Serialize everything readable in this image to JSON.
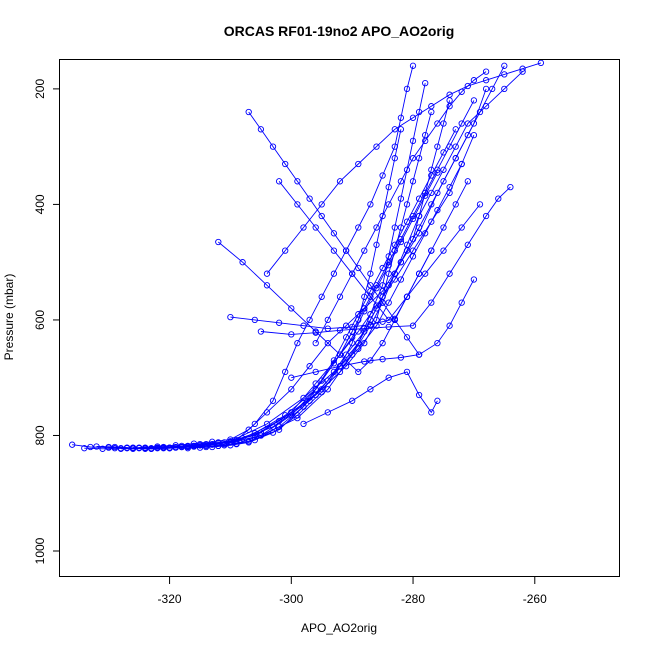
{
  "chart_data": {
    "type": "line",
    "title": "ORCAS RF01-19no2 APO_AO2orig",
    "xlabel": "APO_AO2orig",
    "ylabel": "Pressure (mbar)",
    "xlim": [
      -338,
      -246
    ],
    "ylim": [
      1045,
      150
    ],
    "y_reversed": true,
    "x_ticks": [
      -320,
      -300,
      -280,
      -260
    ],
    "x_tick_labels": [
      "-320",
      "-300",
      "-280",
      "-260"
    ],
    "y_ticks": [
      200,
      400,
      600,
      800,
      1000
    ],
    "y_tick_labels": [
      "200",
      "400",
      "600",
      "800",
      "1000"
    ],
    "grid": false,
    "legend": "none",
    "series_color": "#0000ff",
    "marker": "open-circle",
    "series": [
      {
        "x": [
          -336,
          -333,
          -330,
          -327,
          -324,
          -321,
          -318,
          -315,
          -312,
          -309,
          -306,
          -303,
          -301,
          -299,
          -297,
          -295,
          -293,
          -291,
          -289,
          -287,
          -285,
          -283,
          -282,
          -281,
          -280
        ],
        "y": [
          816,
          820,
          821,
          822,
          821,
          820,
          818,
          815,
          812,
          808,
          780,
          740,
          690,
          640,
          600,
          560,
          520,
          480,
          440,
          400,
          350,
          300,
          250,
          200,
          160
        ]
      },
      {
        "x": [
          -334,
          -331,
          -328,
          -325,
          -322,
          -319,
          -316,
          -313,
          -310,
          -307,
          -304,
          -300,
          -297,
          -294,
          -291,
          -288,
          -285,
          -282,
          -279,
          -276,
          -273,
          -270,
          -268
        ],
        "y": [
          822,
          823,
          822,
          821,
          819,
          817,
          814,
          811,
          807,
          790,
          760,
          720,
          680,
          640,
          610,
          580,
          550,
          500,
          450,
          380,
          320,
          260,
          200
        ]
      },
      {
        "x": [
          -332,
          -329,
          -326,
          -323,
          -320,
          -317,
          -314,
          -311,
          -305,
          -299,
          -294,
          -290,
          -287,
          -285,
          -283,
          -281,
          -279,
          -277,
          -275,
          -273,
          -271,
          -268,
          -265,
          -262
        ],
        "y": [
          819,
          820,
          822,
          823,
          822,
          820,
          818,
          815,
          800,
          770,
          720,
          660,
          610,
          570,
          520,
          470,
          420,
          380,
          340,
          300,
          260,
          230,
          200,
          170
        ]
      },
      {
        "x": [
          -328,
          -325,
          -322,
          -319,
          -316,
          -313,
          -309,
          -303,
          -297,
          -292,
          -289,
          -287,
          -285,
          -284,
          -283,
          -282,
          -281,
          -280,
          -279,
          -278
        ],
        "y": [
          823,
          822,
          821,
          820,
          818,
          815,
          810,
          785,
          740,
          690,
          640,
          590,
          540,
          490,
          440,
          390,
          340,
          290,
          240,
          190
        ]
      },
      {
        "x": [
          -326,
          -323,
          -320,
          -317,
          -314,
          -310,
          -305,
          -300,
          -296,
          -292,
          -289,
          -286,
          -283,
          -280,
          -277,
          -274,
          -272,
          -270
        ],
        "y": [
          821,
          823,
          822,
          819,
          816,
          812,
          795,
          760,
          710,
          660,
          620,
          575,
          530,
          480,
          430,
          380,
          330,
          280
        ]
      },
      {
        "x": [
          -324,
          -321,
          -318,
          -315,
          -312,
          -308,
          -302,
          -296,
          -292,
          -290,
          -289,
          -288,
          -287,
          -286,
          -285,
          -284,
          -283,
          -282
        ],
        "y": [
          822,
          821,
          820,
          817,
          813,
          805,
          775,
          730,
          680,
          640,
          600,
          560,
          520,
          470,
          420,
          370,
          320,
          270
        ]
      },
      {
        "x": [
          -330,
          -327,
          -324,
          -321,
          -318,
          -315,
          -311,
          -306,
          -300,
          -295,
          -291,
          -288,
          -286,
          -285,
          -284,
          -283,
          -282,
          -281,
          -280,
          -279,
          -278,
          -277
        ],
        "y": [
          820,
          821,
          823,
          822,
          820,
          817,
          812,
          800,
          760,
          720,
          680,
          640,
          600,
          560,
          520,
          480,
          440,
          400,
          360,
          320,
          280,
          240
        ]
      },
      {
        "x": [
          -322,
          -319,
          -316,
          -313,
          -310,
          -306,
          -301,
          -296,
          -293,
          -291,
          -289,
          -287,
          -285,
          -283,
          -281,
          -279,
          -277,
          -275,
          -273
        ],
        "y": [
          822,
          821,
          819,
          816,
          811,
          796,
          765,
          720,
          670,
          630,
          590,
          550,
          510,
          470,
          430,
          390,
          350,
          310,
          270
        ]
      },
      {
        "x": [
          -320,
          -317,
          -314,
          -311,
          -307,
          -302,
          -298,
          -295,
          -292,
          -290,
          -288,
          -286,
          -284,
          -282,
          -280,
          -278,
          -276,
          -274,
          -272,
          -270
        ],
        "y": [
          821,
          822,
          820,
          817,
          810,
          790,
          750,
          705,
          660,
          620,
          580,
          540,
          500,
          460,
          420,
          380,
          340,
          300,
          260,
          220
        ]
      },
      {
        "x": [
          -318,
          -315,
          -312,
          -309,
          -305,
          -300,
          -296,
          -293,
          -290,
          -288,
          -286,
          -284,
          -282,
          -280,
          -278,
          -276
        ],
        "y": [
          820,
          821,
          818,
          814,
          800,
          765,
          720,
          675,
          630,
          585,
          545,
          505,
          465,
          425,
          385,
          345
        ]
      },
      {
        "x": [
          -316,
          -313,
          -310,
          -307,
          -303,
          -299,
          -295,
          -292,
          -289,
          -287,
          -285,
          -283,
          -281,
          -279,
          -277,
          -275,
          -273,
          -271,
          -269,
          -267,
          -265
        ],
        "y": [
          819,
          820,
          817,
          812,
          795,
          765,
          725,
          680,
          640,
          600,
          560,
          520,
          480,
          440,
          400,
          360,
          320,
          280,
          240,
          200,
          160
        ]
      },
      {
        "x": [
          -312,
          -309,
          -306,
          -302,
          -298,
          -294,
          -291,
          -288,
          -286,
          -284,
          -282,
          -280,
          -279,
          -278,
          -277,
          -276,
          -275,
          -274
        ],
        "y": [
          818,
          815,
          808,
          785,
          750,
          705,
          660,
          620,
          580,
          540,
          500,
          460,
          420,
          380,
          340,
          300,
          260,
          220
        ]
      },
      {
        "x": [
          -329,
          -326,
          -323,
          -320,
          -317,
          -314,
          -310,
          -304,
          -298,
          -293,
          -289,
          -286,
          -284,
          -282,
          -280,
          -278,
          -276,
          -274,
          -272
        ],
        "y": [
          822,
          823,
          822,
          821,
          818,
          815,
          810,
          780,
          735,
          690,
          650,
          610,
          570,
          530,
          490,
          450,
          410,
          370,
          330
        ]
      },
      {
        "x": [
          -310,
          -306,
          -302,
          -298,
          -294,
          -290,
          -287,
          -285,
          -283,
          -281,
          -279,
          -277,
          -275,
          -273,
          -271
        ],
        "y": [
          595,
          600,
          605,
          610,
          615,
          612,
          608,
          603,
          598,
          560,
          520,
          480,
          440,
          400,
          360
        ]
      },
      {
        "x": [
          -305,
          -300,
          -296,
          -292,
          -288,
          -284,
          -280,
          -277,
          -274,
          -271,
          -268,
          -266,
          -264
        ],
        "y": [
          620,
          625,
          622,
          618,
          615,
          612,
          610,
          570,
          520,
          470,
          420,
          390,
          370
        ]
      },
      {
        "x": [
          -312,
          -308,
          -304,
          -300,
          -296,
          -292,
          -289,
          -287,
          -285,
          -283,
          -281,
          -279,
          -277
        ],
        "y": [
          465,
          500,
          540,
          580,
          620,
          660,
          690,
          670,
          640,
          600,
          560,
          520,
          480
        ]
      },
      {
        "x": [
          -300,
          -296,
          -292,
          -288,
          -285,
          -282,
          -279,
          -276,
          -274,
          -272,
          -270
        ],
        "y": [
          700,
          690,
          680,
          672,
          668,
          665,
          660,
          640,
          610,
          570,
          530
        ]
      },
      {
        "x": [
          -298,
          -294,
          -290,
          -287,
          -284,
          -281,
          -279,
          -277,
          -276
        ],
        "y": [
          780,
          760,
          740,
          720,
          700,
          690,
          730,
          760,
          740
        ]
      },
      {
        "x": [
          -307,
          -305,
          -303,
          -301,
          -299,
          -297,
          -295,
          -293,
          -291,
          -289,
          -287,
          -285,
          -283,
          -281,
          -279
        ],
        "y": [
          240,
          270,
          300,
          330,
          360,
          390,
          420,
          450,
          480,
          510,
          540,
          570,
          600,
          630,
          660
        ]
      },
      {
        "x": [
          -304,
          -301,
          -298,
          -295,
          -292,
          -289,
          -286,
          -283,
          -280,
          -277,
          -274,
          -271,
          -268,
          -265,
          -262,
          -259
        ],
        "y": [
          520,
          480,
          440,
          400,
          360,
          330,
          300,
          270,
          250,
          230,
          210,
          195,
          185,
          175,
          165,
          155
        ]
      },
      {
        "x": [
          -296,
          -294,
          -292,
          -290,
          -288,
          -286,
          -284,
          -282,
          -280,
          -278,
          -276,
          -274,
          -272,
          -270,
          -268
        ],
        "y": [
          640,
          600,
          560,
          520,
          480,
          440,
          400,
          360,
          320,
          290,
          260,
          230,
          205,
          185,
          170
        ]
      },
      {
        "x": [
          -302,
          -299,
          -296,
          -293,
          -290,
          -287,
          -284,
          -281,
          -278,
          -275,
          -272,
          -269
        ],
        "y": [
          360,
          400,
          440,
          480,
          520,
          560,
          600,
          560,
          520,
          480,
          440,
          400
        ]
      }
    ]
  }
}
